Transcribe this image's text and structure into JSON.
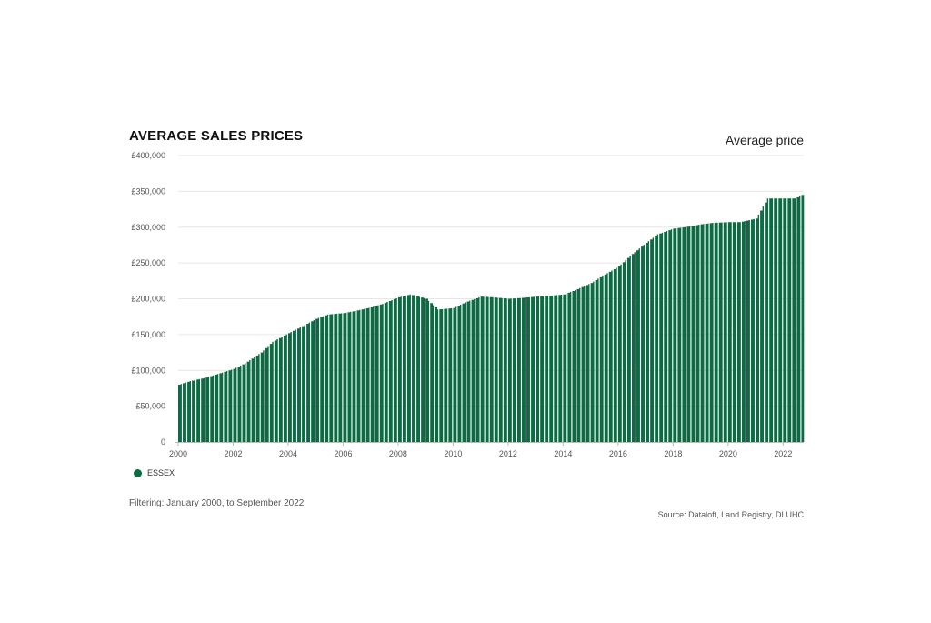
{
  "header": {
    "title": "AVERAGE SALES PRICES",
    "subtitle": "Average price"
  },
  "legend": {
    "label": "ESSEX",
    "color": "#0c6b43"
  },
  "footer": {
    "filter_text": "Filtering: January 2000, to September 2022",
    "source_text": "Source: Dataloft, Land Registry, DLUHC"
  },
  "colors": {
    "bar": "#0c6b43",
    "grid": "#e6e6e6",
    "axis": "#bbbbbb"
  },
  "chart_data": {
    "type": "bar",
    "title": "AVERAGE SALES PRICES",
    "series_name": "ESSEX",
    "x_start": "2000-01",
    "x_end": "2022-09",
    "x_ticks": [
      "2000",
      "2002",
      "2004",
      "2006",
      "2008",
      "2010",
      "2012",
      "2014",
      "2016",
      "2018",
      "2020",
      "2022"
    ],
    "ylim": [
      0,
      400000
    ],
    "y_ticks": [
      0,
      50000,
      100000,
      150000,
      200000,
      250000,
      300000,
      350000,
      400000
    ],
    "y_tick_labels": [
      "0",
      "£50,000",
      "£100,000",
      "£150,000",
      "£200,000",
      "£250,000",
      "£300,000",
      "£350,000",
      "£400,000"
    ],
    "grid": true,
    "legend_position": "bottom-left",
    "series": [
      {
        "name": "ESSEX",
        "x": [
          "2000-01",
          "2000-06",
          "2001-01",
          "2001-06",
          "2002-01",
          "2002-06",
          "2003-01",
          "2003-06",
          "2004-01",
          "2004-06",
          "2005-01",
          "2005-06",
          "2006-01",
          "2006-06",
          "2007-01",
          "2007-06",
          "2008-01",
          "2008-06",
          "2009-01",
          "2009-06",
          "2010-01",
          "2010-06",
          "2011-01",
          "2011-06",
          "2012-01",
          "2012-06",
          "2013-01",
          "2013-06",
          "2014-01",
          "2014-06",
          "2015-01",
          "2015-06",
          "2016-01",
          "2016-06",
          "2017-01",
          "2017-06",
          "2018-01",
          "2018-06",
          "2019-01",
          "2019-06",
          "2020-01",
          "2020-06",
          "2021-01",
          "2021-06",
          "2022-01",
          "2022-06",
          "2022-09"
        ],
        "values": [
          80000,
          85000,
          90000,
          95000,
          102000,
          110000,
          125000,
          140000,
          152000,
          160000,
          172000,
          178000,
          180000,
          183000,
          188000,
          193000,
          202000,
          206000,
          200000,
          185000,
          187000,
          195000,
          203000,
          202000,
          200000,
          201000,
          203000,
          204000,
          206000,
          212000,
          222000,
          232000,
          245000,
          260000,
          278000,
          290000,
          298000,
          300000,
          304000,
          306000,
          307000,
          307000,
          312000,
          340000,
          340000,
          340000,
          345000
        ]
      }
    ]
  }
}
